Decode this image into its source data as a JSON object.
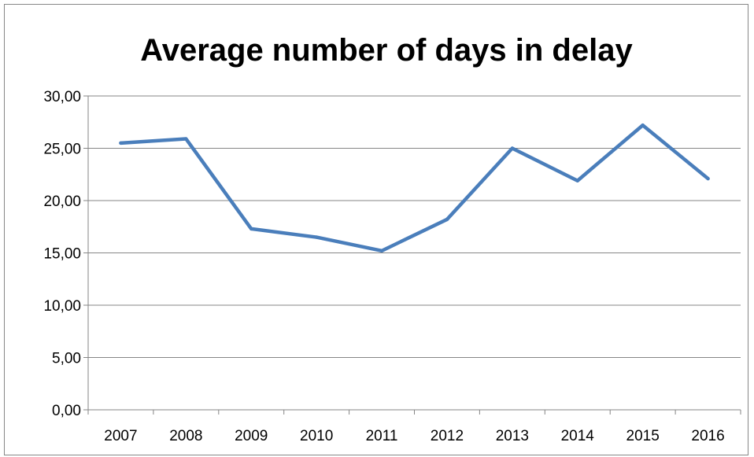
{
  "chart_data": {
    "type": "line",
    "title": "Average number of days in delay",
    "xlabel": "",
    "ylabel": "",
    "categories": [
      "2007",
      "2008",
      "2009",
      "2010",
      "2011",
      "2012",
      "2013",
      "2014",
      "2015",
      "2016"
    ],
    "series": [
      {
        "values": [
          25.5,
          25.9,
          17.3,
          16.5,
          15.2,
          18.2,
          25.0,
          21.9,
          27.2,
          22.1
        ]
      }
    ],
    "ylim": [
      0,
      30
    ],
    "yticks": [
      "0,00",
      "5,00",
      "10,00",
      "15,00",
      "20,00",
      "25,00",
      "30,00"
    ],
    "grid": true,
    "legend": "none",
    "colors": {
      "line": "#4a7ebb",
      "grid": "#868686",
      "axis": "#868686",
      "border": "#878787"
    }
  }
}
